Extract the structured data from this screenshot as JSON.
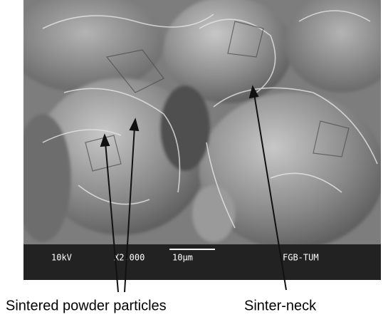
{
  "micrograph": {
    "voltage": "10kV",
    "magnification": "X2,000",
    "scale_bar": "10µm",
    "label": "FGB-TUM"
  },
  "annotations": {
    "particles": "Sintered powder particles",
    "neck": "Sinter-neck"
  }
}
